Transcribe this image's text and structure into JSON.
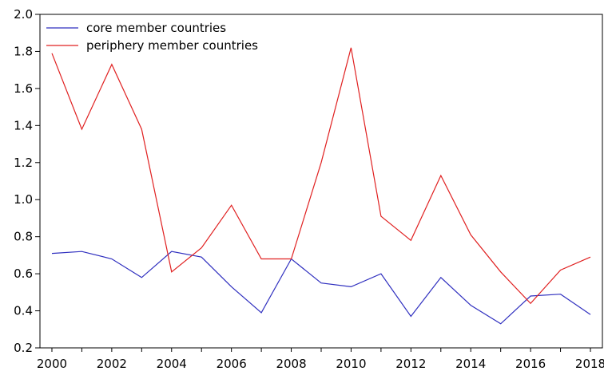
{
  "chart_data": {
    "type": "line",
    "title": "",
    "xlabel": "",
    "ylabel": "",
    "xlim": [
      1999.6,
      2018.4
    ],
    "ylim": [
      0.2,
      2.0
    ],
    "x": [
      2000,
      2001,
      2002,
      2003,
      2004,
      2005,
      2006,
      2007,
      2008,
      2009,
      2010,
      2011,
      2012,
      2013,
      2014,
      2015,
      2016,
      2017,
      2018
    ],
    "x_ticks": [
      "2000",
      "2002",
      "2004",
      "2006",
      "2008",
      "2010",
      "2012",
      "2014",
      "2016",
      "2018"
    ],
    "x_tick_values": [
      2000,
      2002,
      2004,
      2006,
      2008,
      2010,
      2012,
      2014,
      2016,
      2018
    ],
    "y_ticks": [
      "0.2",
      "0.4",
      "0.6",
      "0.8",
      "1.0",
      "1.2",
      "1.4",
      "1.6",
      "1.8",
      "2.0"
    ],
    "y_tick_values": [
      0.2,
      0.4,
      0.6,
      0.8,
      1.0,
      1.2,
      1.4,
      1.6,
      1.8,
      2.0
    ],
    "grid": false,
    "legend_position": "top-left",
    "series": [
      {
        "name": "core member countries",
        "color": "#2f2fbf",
        "values": [
          0.71,
          0.72,
          0.68,
          0.58,
          0.72,
          0.69,
          0.53,
          0.39,
          0.68,
          0.55,
          0.53,
          0.6,
          0.37,
          0.58,
          0.43,
          0.33,
          0.48,
          0.49,
          0.38
        ]
      },
      {
        "name": "periphery member countries",
        "color": "#e02020",
        "values": [
          1.79,
          1.38,
          1.73,
          1.38,
          0.61,
          0.74,
          0.97,
          0.68,
          0.68,
          1.2,
          1.82,
          0.91,
          0.78,
          1.13,
          0.81,
          0.61,
          0.44,
          0.62,
          0.69
        ]
      }
    ]
  }
}
